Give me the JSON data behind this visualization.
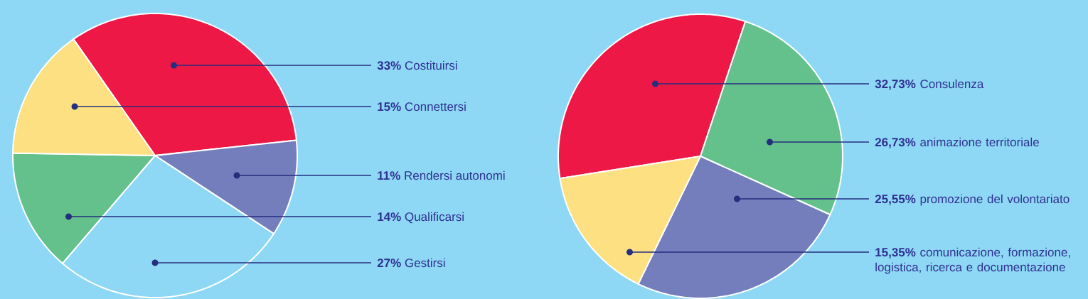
{
  "chart_data": [
    {
      "type": "pie",
      "categories": [
        "Costituirsi",
        "Connettersi",
        "Rendersi autonomi",
        "Qualificarsi",
        "Gestirsi"
      ],
      "values": [
        33,
        15,
        11,
        14,
        27
      ],
      "value_labels": [
        "33%",
        "15%",
        "11%",
        "14%",
        "27%"
      ],
      "colors": [
        "#ee1846",
        "#fde082",
        "#747ebd",
        "#64c18c",
        "#8ed8f5"
      ]
    },
    {
      "type": "pie",
      "categories": [
        "Consulenza",
        "animazione territoriale",
        "promozione del volontariato",
        "comunicazione, formazione, logistica, ricerca e documentazione"
      ],
      "values": [
        32.73,
        26.73,
        25.55,
        15.35
      ],
      "value_labels": [
        "32,73%",
        "26,73%",
        "25,55%",
        "15,35%"
      ],
      "colors": [
        "#ee1846",
        "#64c18c",
        "#747ebd",
        "#fde082"
      ]
    }
  ]
}
